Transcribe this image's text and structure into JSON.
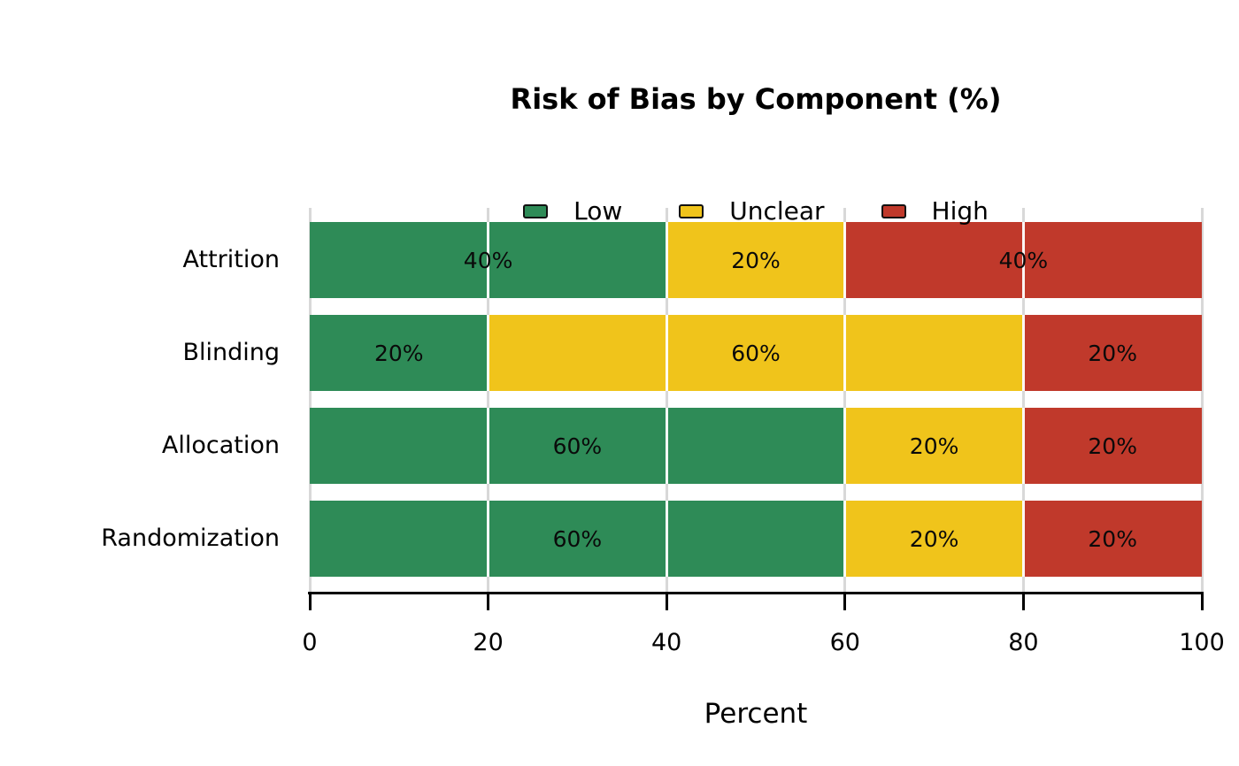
{
  "chart_data": {
    "type": "bar",
    "orientation": "horizontal",
    "stacked": true,
    "title": "Risk of Bias by Component (%)",
    "xlabel": "Percent",
    "ylabel": "",
    "categories": [
      "Attrition",
      "Blinding",
      "Allocation",
      "Randomization"
    ],
    "series": [
      {
        "name": "Low",
        "color": "#2e8b57",
        "values": [
          40,
          20,
          60,
          60
        ]
      },
      {
        "name": "Unclear",
        "color": "#f0c41b",
        "values": [
          20,
          60,
          20,
          20
        ]
      },
      {
        "name": "High",
        "color": "#c0392b",
        "values": [
          40,
          20,
          20,
          20
        ]
      }
    ],
    "xlim": [
      0,
      100
    ],
    "xticks": [
      0,
      20,
      40,
      60,
      80,
      100
    ],
    "inner_gridlines": [
      20,
      40,
      60,
      80
    ],
    "bar_label_suffix": "%",
    "legend_position": "top-center",
    "legend_items": [
      "Low",
      "Unclear",
      "High"
    ],
    "grid": true,
    "styles": {
      "grid_color": "#d8d8d8",
      "bar_grid_color": "rgba(255,255,255,0.95)",
      "axis_color": "#000000",
      "text_color": "#000000",
      "background": "#ffffff"
    }
  }
}
